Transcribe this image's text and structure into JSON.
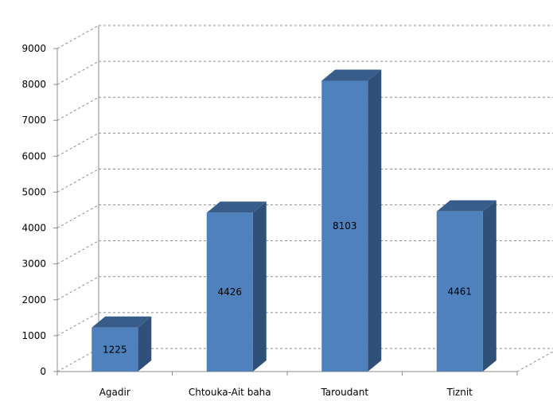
{
  "chart_data": {
    "type": "bar",
    "categories": [
      "Agadir",
      "Chtouka-Ait baha",
      "Taroudant",
      "Tiznit"
    ],
    "values": [
      1225,
      4426,
      8103,
      4461
    ],
    "data_labels": [
      "1225",
      "4426",
      "8103",
      "4461"
    ],
    "yticks": [
      "0",
      "1000",
      "2000",
      "3000",
      "4000",
      "5000",
      "6000",
      "7000",
      "8000",
      "9000"
    ],
    "ylim": [
      0,
      9000
    ],
    "grid": true,
    "style": "3d-column",
    "colors": {
      "front": "#4f81bd",
      "side": "#2f5078",
      "top": "#385d8a",
      "grid": "#8c8c8c"
    }
  }
}
